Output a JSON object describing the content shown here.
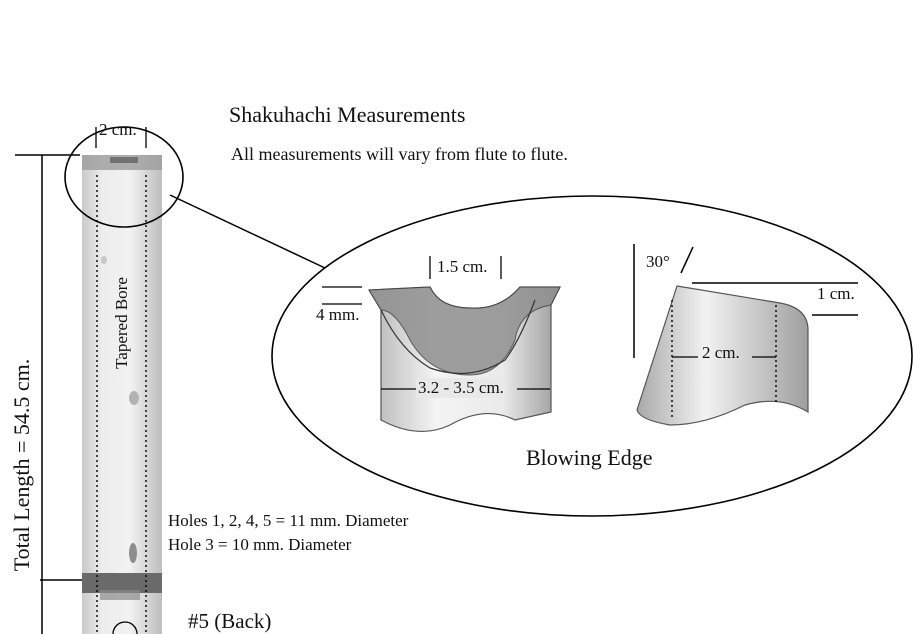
{
  "title": "Shakuhachi Measurements",
  "subtitle": "All measurements will vary from flute to flute.",
  "flute": {
    "total_length": "Total Length = 54.5 cm.",
    "bore_label": "Tapered Bore",
    "top_width": "2 cm.",
    "holes_line1": "Holes 1, 2, 4, 5 = 11 mm. Diameter",
    "holes_line2": "Hole 3 = 10 mm. Diameter",
    "back_hole": "#5 (Back)"
  },
  "detail": {
    "caption": "Blowing Edge",
    "front": {
      "notch_width": "1.5 cm.",
      "edge_depth": "4 mm.",
      "outer_diameter": "3.2 - 3.5 cm."
    },
    "side": {
      "angle": "30°",
      "edge_height": "1 cm.",
      "wall_span": "2 cm."
    }
  }
}
